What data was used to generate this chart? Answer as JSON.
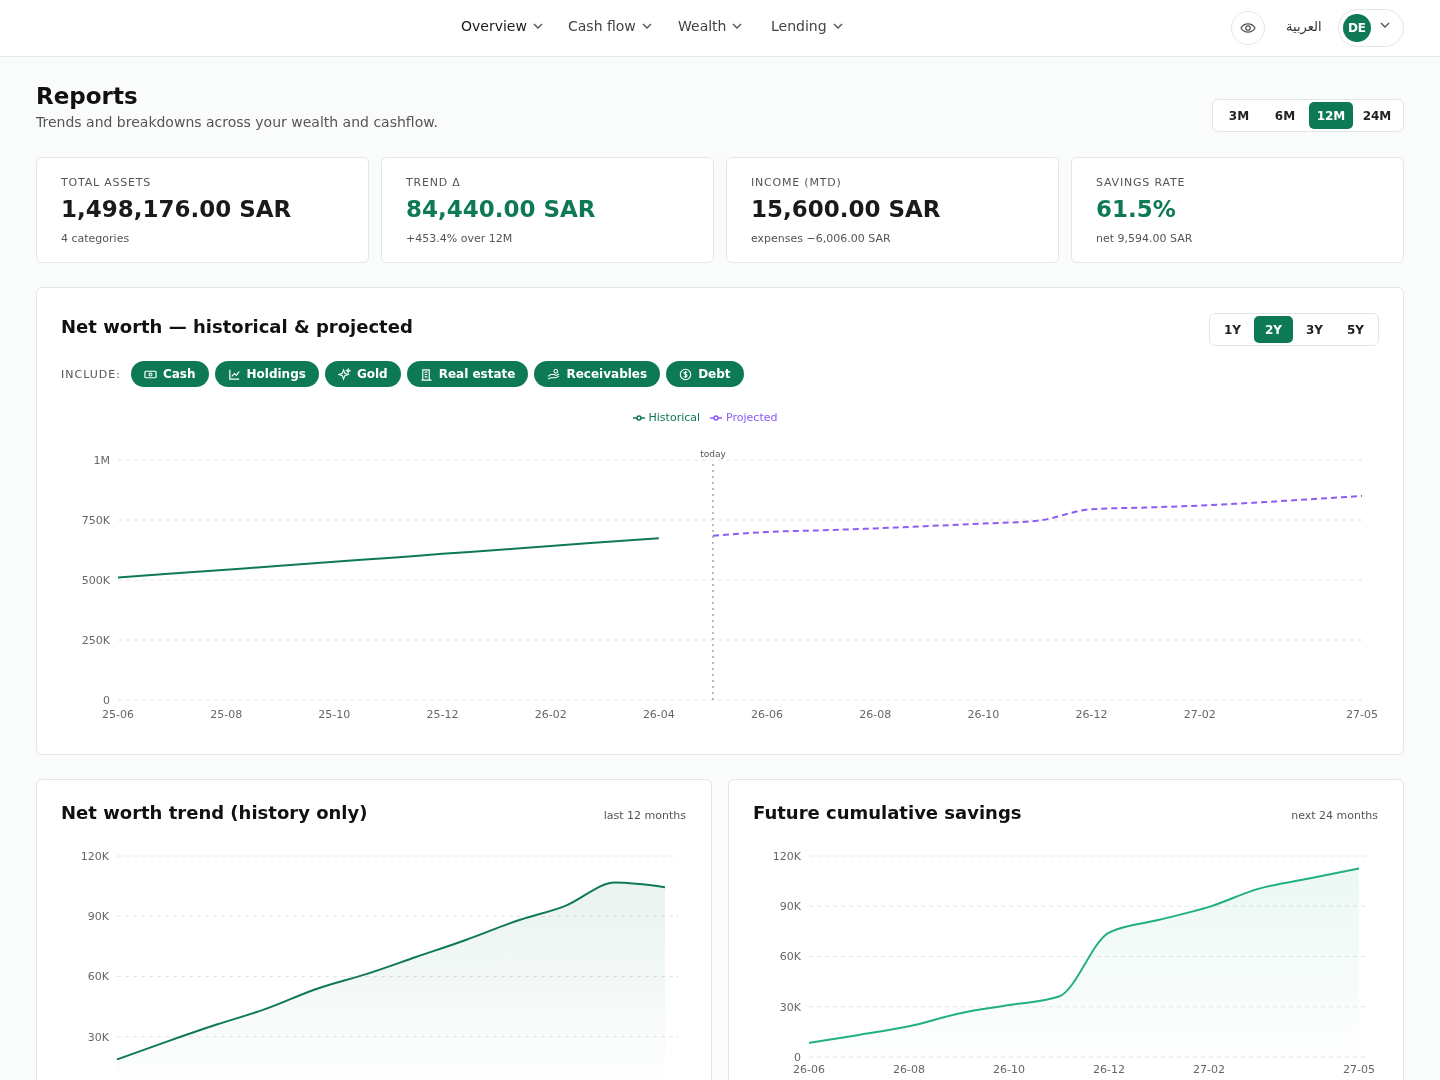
{
  "chart_data": [
    {
      "type": "other",
      "title": "Reports",
      "subtitle": "Trends and breakdowns across your wealth and cashflow.",
      "annotations": [
        "Overview",
        "Cash flow",
        "Wealth",
        "Lending",
        "العربية",
        "DE",
        "3M",
        "6M",
        "12M",
        "24M"
      ]
    },
    {
      "type": "other",
      "title": "TOTAL ASSETS",
      "annotations": [
        "1,498,176.00 SAR",
        "4 categories"
      ],
      "color": "#1a1a1a"
    },
    {
      "type": "other",
      "title": "TREND Δ",
      "annotations": [
        "84,440.00 SAR",
        "+453.4% over 12M"
      ],
      "color": "#0e7a55"
    },
    {
      "type": "other",
      "title": "INCOME (MTD)",
      "annotations": [
        "15,600.00 SAR",
        "expenses −6,006.00 SAR"
      ],
      "color": "#1a1a1a"
    },
    {
      "type": "other",
      "title": "SAVINGS RATE",
      "annotations": [
        "61.5%",
        "net 9,594.00 SAR"
      ],
      "color": "#0e7a55"
    },
    {
      "type": "line",
      "title": "Net worth — historical & projected",
      "annotations": [
        "1Y",
        "2Y",
        "3Y",
        "5Y",
        "INCLUDE:",
        "Cash",
        "Holdings",
        "Gold",
        "Real estate",
        "Receivables",
        "Debt",
        "today"
      ],
      "series": [
        {
          "name": "Historical",
          "color": "#0e7a55",
          "values": [
            510000,
            527000,
            543000,
            559000,
            576000,
            592000,
            609000,
            625000,
            642000,
            658000,
            674000,
            null,
            null,
            null,
            null,
            null,
            null,
            null,
            null,
            null,
            null,
            null,
            null,
            null
          ]
        },
        {
          "name": "Projected",
          "color": "#8b5cf6",
          "line_style": "dashed",
          "values": [
            null,
            null,
            null,
            null,
            null,
            null,
            null,
            null,
            null,
            null,
            null,
            684000,
            700000,
            707000,
            715000,
            725000,
            735000,
            747000,
            795000,
            802000,
            810000,
            822000,
            836000,
            850000
          ]
        }
      ],
      "categories": [
        "25-06",
        null,
        "25-08",
        null,
        "25-10",
        null,
        "25-12",
        null,
        "26-02",
        null,
        "26-04",
        null,
        "26-06",
        null,
        "26-08",
        null,
        "26-10",
        null,
        "26-12",
        null,
        "27-02",
        null,
        null,
        "27-05"
      ],
      "ylim": [
        0,
        1000000
      ],
      "yticks": [
        0,
        {
          "value": 250000,
          "label": "250K"
        },
        {
          "value": 500000,
          "label": "500K"
        },
        {
          "value": 750000,
          "label": "750K"
        },
        {
          "value": 1000000,
          "label": "1M"
        }
      ],
      "grid": "y",
      "legend": "top"
    },
    {
      "type": "area",
      "title": "Net worth trend (history only)",
      "annotations": [
        "last 12 months"
      ],
      "categories": [
        null,
        null,
        null,
        null,
        null,
        null,
        null,
        null,
        null,
        null,
        null,
        null
      ],
      "series": [
        {
          "color": "#0e7a55",
          "values": [
            18700,
            27600,
            36100,
            44000,
            53800,
            61200,
            69700,
            78200,
            87500,
            95200,
            106800,
            104500
          ]
        }
      ],
      "ylim": [
        8000,
        120000
      ],
      "yticks": [
        {
          "value": 30000,
          "label": "30K"
        },
        {
          "value": 60000,
          "label": "60K"
        },
        {
          "value": 90000,
          "label": "90K"
        },
        {
          "value": 120000,
          "label": "120K"
        }
      ],
      "grid": "y",
      "tick_labels": "y"
    },
    {
      "type": "area",
      "title": "Future cumulative savings",
      "annotations": [
        "next 24 months"
      ],
      "categories": [
        "26-06",
        null,
        "26-08",
        null,
        "26-10",
        null,
        "26-12",
        null,
        "27-02",
        null,
        null,
        "27-05"
      ],
      "series": [
        {
          "color": "#22b07d",
          "values": [
            8400,
            13200,
            18300,
            26000,
            31000,
            36100,
            74300,
            81900,
            89600,
            100500,
            106600,
            112500
          ]
        }
      ],
      "ylim": [
        0,
        120000
      ],
      "yticks": [
        0,
        {
          "value": 30000,
          "label": "30K"
        },
        {
          "value": 60000,
          "label": "60K"
        },
        {
          "value": 90000,
          "label": "90K"
        },
        {
          "value": 120000,
          "label": "120K"
        }
      ],
      "grid": "y"
    }
  ]
}
